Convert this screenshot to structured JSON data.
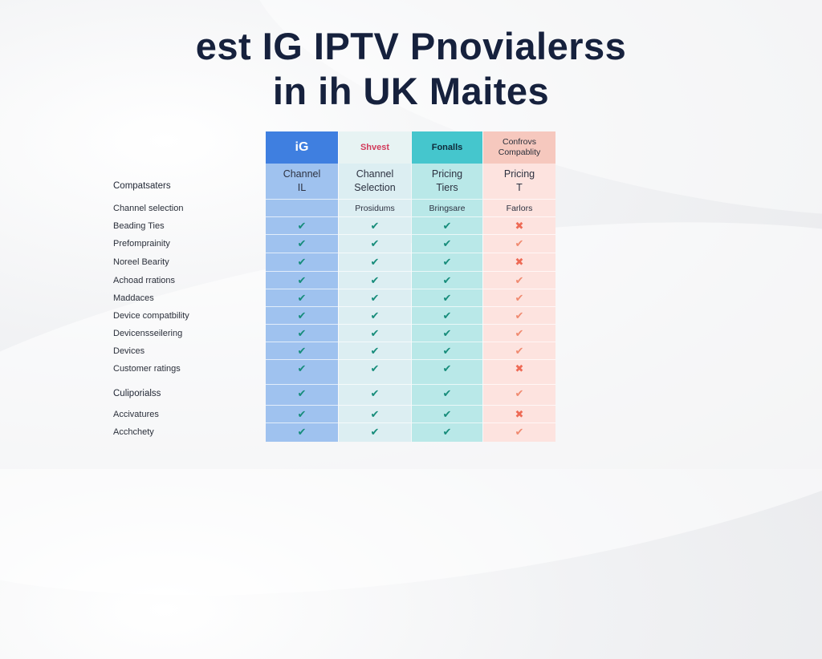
{
  "title": {
    "line1": "est IG IPTV Pnovialerss",
    "line2": "in ih UK Maites"
  },
  "columns": [
    {
      "header": "iG",
      "sub_line1": "Channel",
      "sub_line2": "IL",
      "row0": ""
    },
    {
      "header": "Shvest",
      "sub_line1": "Channel",
      "sub_line2": "Selection",
      "row0": "Prosidums"
    },
    {
      "header": "Fonalls",
      "sub_line1": "Pricing",
      "sub_line2": "Tiers",
      "row0": "Bringsare"
    },
    {
      "header_line1": "Confrovs",
      "header_line2": "Compablity",
      "sub_line1": "Pricing",
      "sub_line2": "T",
      "row0": "Farlors"
    }
  ],
  "header_label": "Compatsaters",
  "rows": [
    {
      "label": "Channel selection"
    },
    {
      "label": "Beading Ties",
      "marks": [
        "check",
        "check",
        "check",
        "cross"
      ]
    },
    {
      "label": "Prefomprainity",
      "marks": [
        "check",
        "check",
        "check",
        "check"
      ]
    },
    {
      "label": "Noreel Bearity",
      "marks": [
        "check",
        "check",
        "check",
        "cross"
      ]
    },
    {
      "label": "Achoad rrations",
      "marks": [
        "check",
        "check",
        "check",
        "check"
      ]
    },
    {
      "label": "Maddaces",
      "marks": [
        "check",
        "check",
        "check",
        "check"
      ]
    },
    {
      "label": "Device compatbility",
      "marks": [
        "check",
        "check",
        "check",
        "check"
      ]
    },
    {
      "label": "Devicensseilering",
      "marks": [
        "check",
        "check",
        "check",
        "check"
      ]
    },
    {
      "label": "Devices",
      "marks": [
        "check",
        "check",
        "check",
        "check"
      ]
    },
    {
      "label": "Customer ratings",
      "marks": [
        "check",
        "check",
        "check",
        "cross"
      ]
    },
    {
      "label": "Culiporialss",
      "marks": [
        "check",
        "check",
        "check",
        "check"
      ]
    },
    {
      "label": "Accivatures",
      "marks": [
        "check",
        "check",
        "check",
        "cross"
      ]
    },
    {
      "label": "Acchchety",
      "marks": [
        "check",
        "check",
        "check",
        "check"
      ]
    }
  ],
  "colors": {
    "title": "#16213d",
    "col1_header": "#3f7fe0",
    "col3_header": "#45c6cd",
    "col4_header": "#f6c8be",
    "check": "#168c7a",
    "cross": "#ee6a55"
  },
  "icons": {
    "check": "check-icon",
    "cross": "cross-icon"
  }
}
